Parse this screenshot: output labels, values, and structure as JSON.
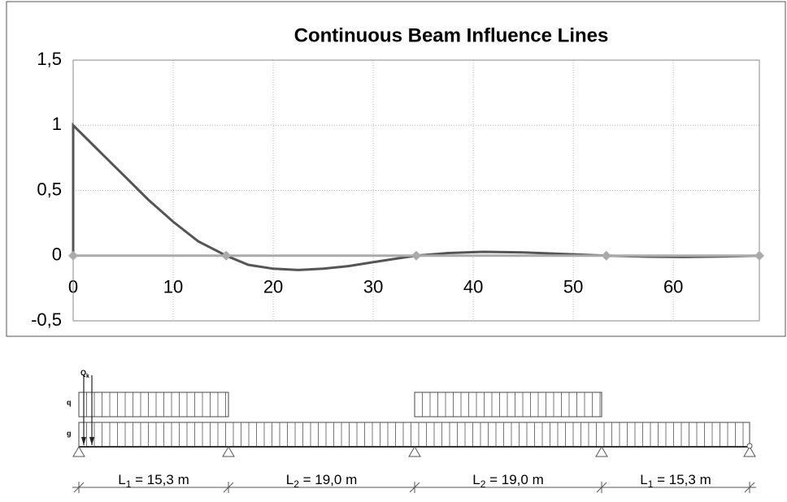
{
  "chart_data": {
    "type": "line",
    "title": "Continuous Beam Influence Lines",
    "xlim": [
      0,
      68.6
    ],
    "xticks": [
      0,
      10,
      20,
      30,
      40,
      50,
      60
    ],
    "ylim": [
      -0.5,
      1.5
    ],
    "yticks": [
      {
        "value": -0.5,
        "label": "-0,5"
      },
      0,
      {
        "value": 0.5,
        "label": "0,5"
      },
      1,
      {
        "value": 1.5,
        "label": "1,5"
      }
    ],
    "grid": true,
    "series": [
      {
        "color": "#555555",
        "marker": "none",
        "x": [
          0,
          0,
          2.5,
          5,
          7.5,
          10,
          12.5,
          15.3,
          17.5,
          20,
          22.5,
          25,
          27.5,
          30,
          32.5,
          34.3,
          37.5,
          41,
          45,
          50,
          53.3,
          57.5,
          61,
          65,
          68.6
        ],
        "values": [
          0,
          1,
          0.81,
          0.62,
          0.43,
          0.26,
          0.11,
          0,
          -0.07,
          -0.1,
          -0.11,
          -0.1,
          -0.08,
          -0.05,
          -0.02,
          0,
          0.02,
          0.03,
          0.025,
          0.01,
          0,
          -0.008,
          -0.01,
          -0.006,
          0
        ]
      },
      {
        "color": "#aaaaaa",
        "marker": "diamond",
        "x": [
          0,
          15.3,
          34.3,
          53.3,
          68.6
        ],
        "values": [
          0,
          0,
          0,
          0,
          0
        ]
      }
    ]
  },
  "diagram": {
    "point_load": {
      "symbol": "Q",
      "index": "k"
    },
    "loads": [
      "q",
      "g"
    ],
    "spans": [
      {
        "symbol": "L",
        "index": "1",
        "text": " = 15,3 m"
      },
      {
        "symbol": "L",
        "index": "2",
        "text": " = 19,0 m"
      },
      {
        "symbol": "L",
        "index": "2",
        "text": " = 19,0 m"
      },
      {
        "symbol": "L",
        "index": "1",
        "text": " = 15,3 m"
      }
    ]
  }
}
